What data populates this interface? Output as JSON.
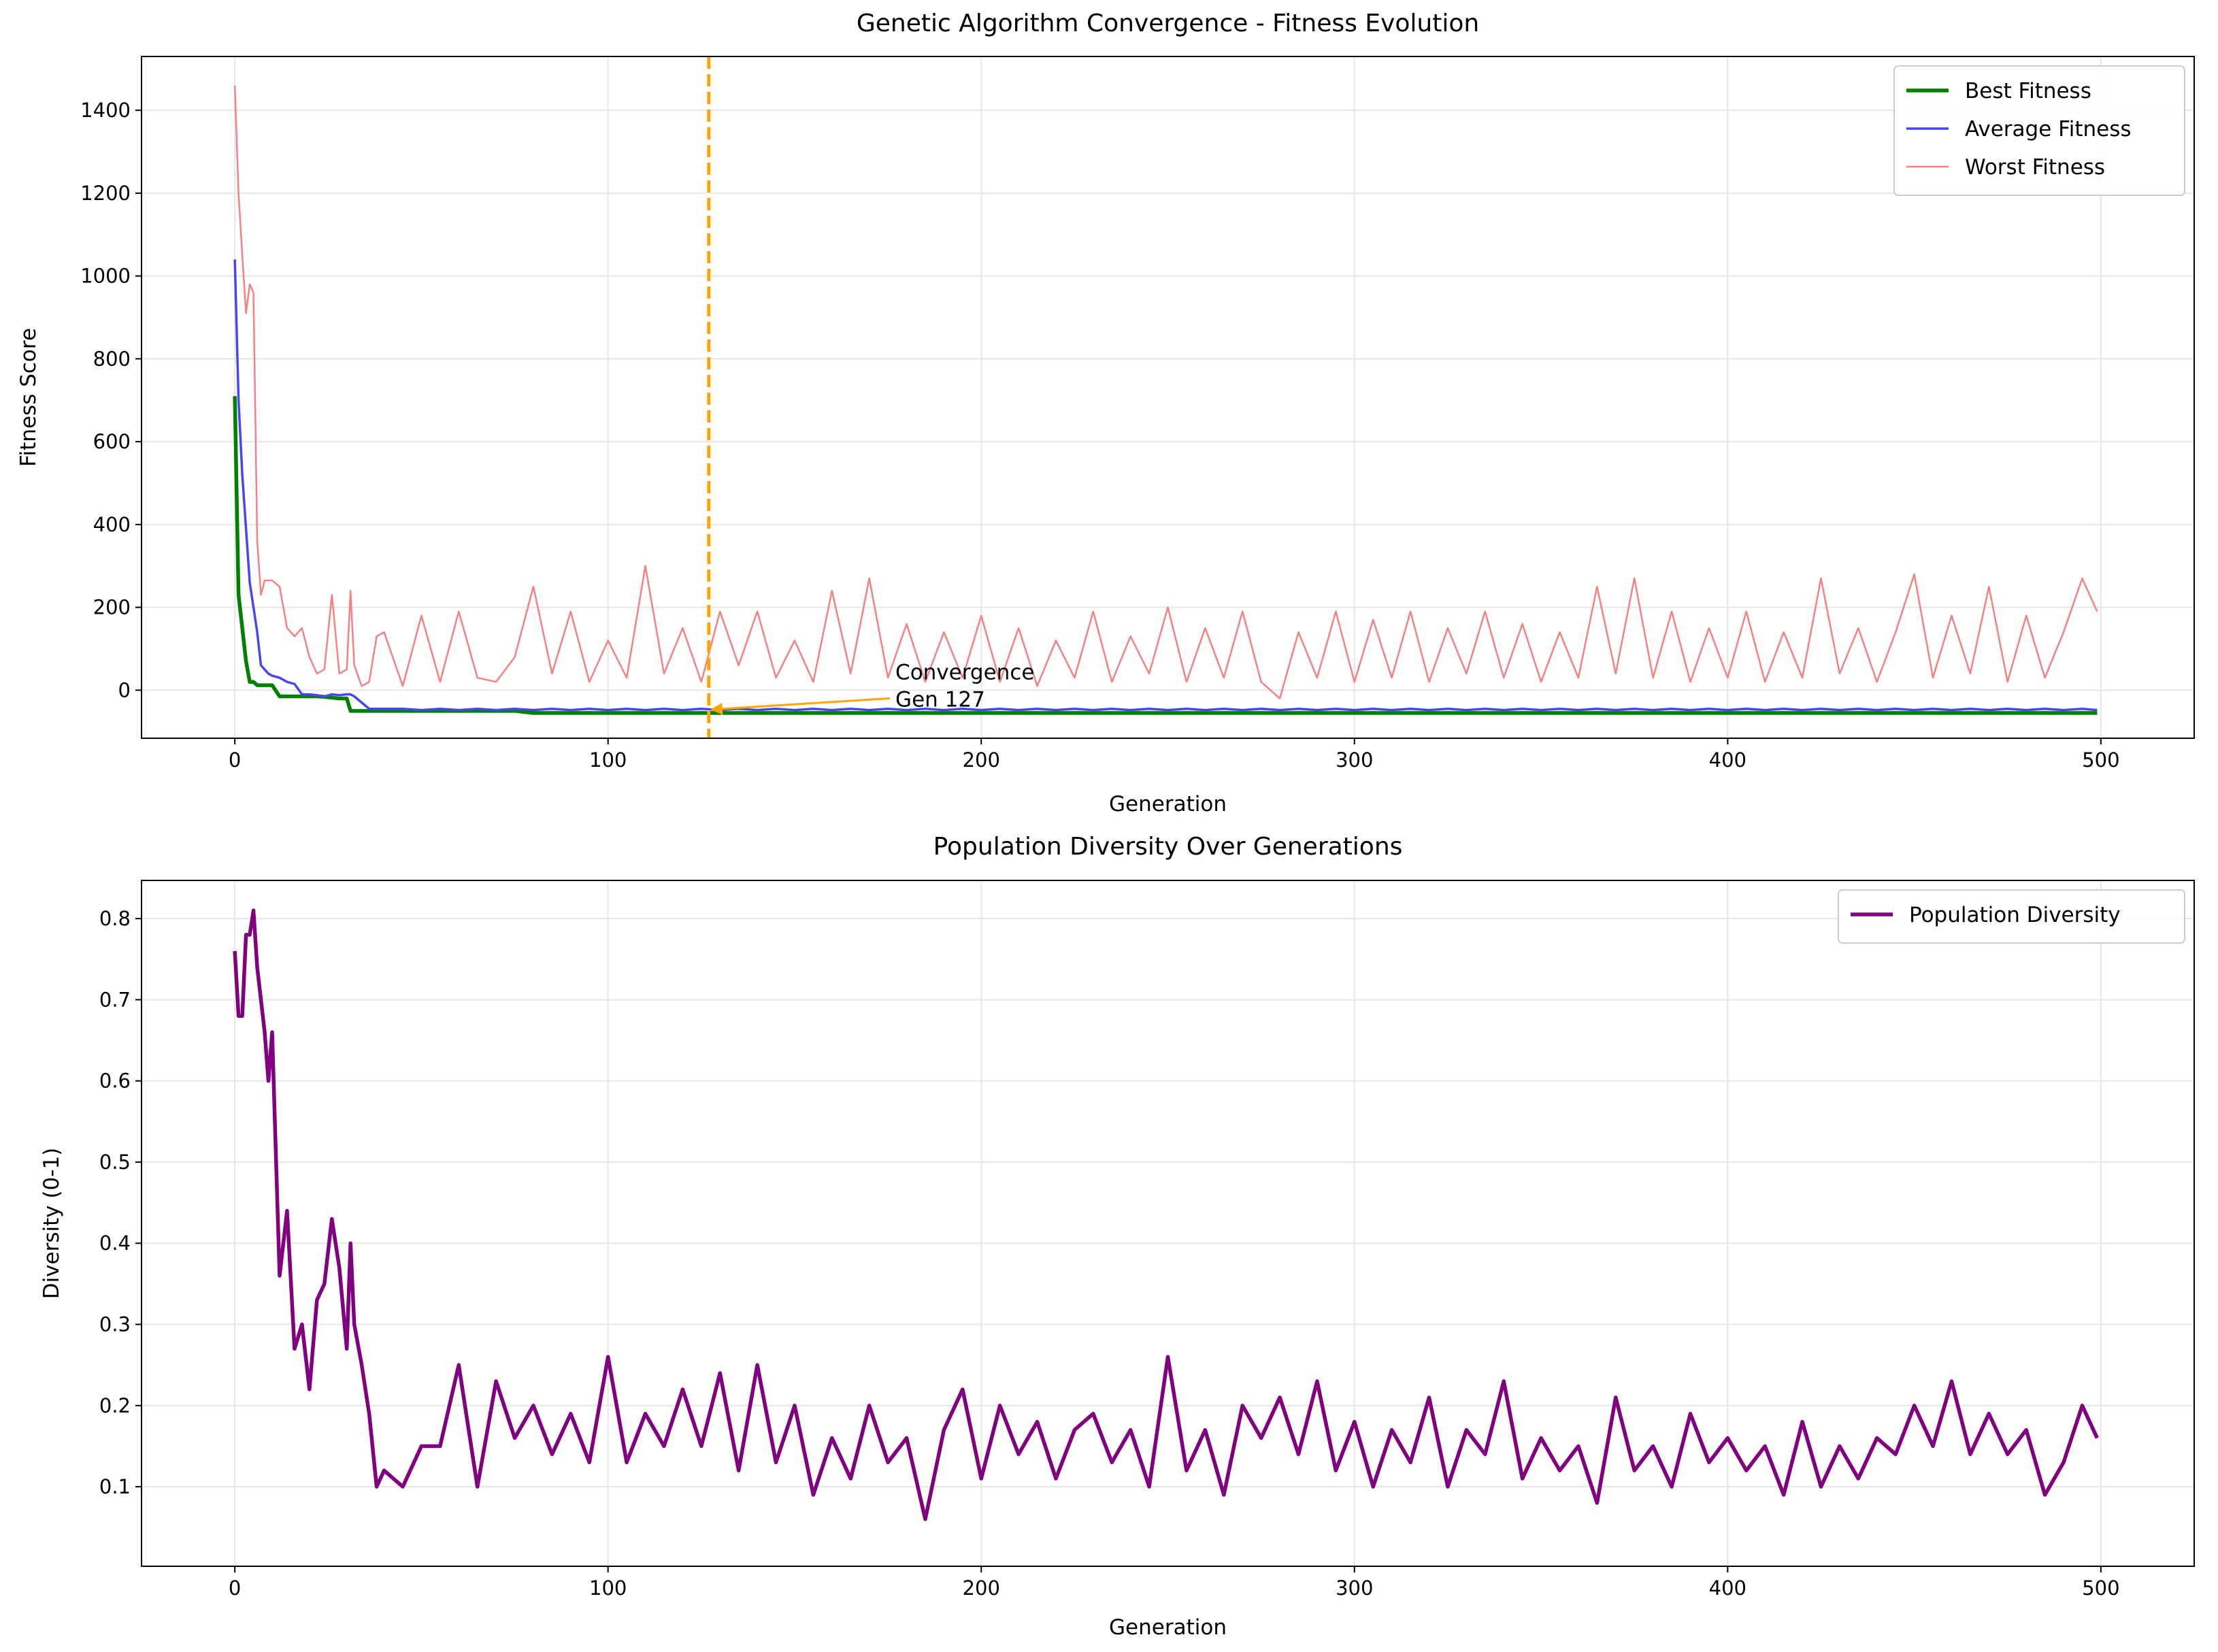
{
  "chart_data": [
    {
      "type": "line",
      "title": "Genetic Algorithm Convergence - Fitness Evolution",
      "xlabel": "Generation",
      "ylabel": "Fitness Score",
      "x": [
        0,
        1,
        2,
        3,
        4,
        5,
        6,
        7,
        8,
        9,
        10,
        12,
        14,
        16,
        18,
        20,
        22,
        24,
        26,
        28,
        30,
        31,
        32,
        34,
        36,
        38,
        40,
        45,
        50,
        55,
        60,
        65,
        70,
        75,
        80,
        85,
        90,
        95,
        100,
        105,
        110,
        115,
        120,
        125,
        130,
        135,
        140,
        145,
        150,
        155,
        160,
        165,
        170,
        175,
        180,
        185,
        190,
        195,
        200,
        205,
        210,
        215,
        220,
        225,
        230,
        235,
        240,
        245,
        250,
        255,
        260,
        265,
        270,
        275,
        280,
        285,
        290,
        295,
        300,
        305,
        310,
        315,
        320,
        325,
        330,
        335,
        340,
        345,
        350,
        355,
        360,
        365,
        370,
        375,
        380,
        385,
        390,
        395,
        400,
        405,
        410,
        415,
        420,
        425,
        430,
        435,
        440,
        445,
        450,
        455,
        460,
        465,
        470,
        475,
        480,
        485,
        490,
        495,
        499
      ],
      "series": [
        {
          "name": "Best Fitness",
          "color": "#008000",
          "values": [
            710,
            230,
            150,
            70,
            20,
            20,
            12,
            12,
            12,
            12,
            12,
            -15,
            -15,
            -15,
            -15,
            -15,
            -15,
            -16,
            -18,
            -20,
            -20,
            -50,
            -50,
            -50,
            -50,
            -50,
            -50,
            -50,
            -50,
            -50,
            -50,
            -50,
            -50,
            -50,
            -55,
            -55,
            -55,
            -55,
            -55,
            -55,
            -55,
            -55,
            -55,
            -55,
            -55,
            -55,
            -55,
            -55,
            -55,
            -55,
            -55,
            -55,
            -55,
            -55,
            -55,
            -55,
            -55,
            -55,
            -55,
            -55,
            -55,
            -55,
            -55,
            -55,
            -55,
            -55,
            -55,
            -55,
            -55,
            -55,
            -55,
            -55,
            -55,
            -55,
            -55,
            -55,
            -55,
            -55,
            -55,
            -55,
            -55,
            -55,
            -55,
            -55,
            -55,
            -55,
            -55,
            -55,
            -55,
            -55,
            -55,
            -55,
            -55,
            -55,
            -55,
            -55,
            -55,
            -55,
            -55,
            -55,
            -55,
            -55,
            -55,
            -55,
            -55,
            -55,
            -55,
            -55,
            -55,
            -55,
            -55,
            -55,
            -55,
            -55,
            -55,
            -55,
            -55,
            -55,
            -55
          ]
        },
        {
          "name": "Average Fitness",
          "color": "#4646f5",
          "values": [
            1040,
            700,
            520,
            390,
            260,
            200,
            140,
            60,
            50,
            40,
            35,
            30,
            20,
            15,
            -10,
            -10,
            -12,
            -15,
            -10,
            -12,
            -10,
            -10,
            -15,
            -30,
            -45,
            -45,
            -45,
            -45,
            -48,
            -45,
            -48,
            -45,
            -48,
            -45,
            -48,
            -45,
            -48,
            -45,
            -48,
            -45,
            -48,
            -45,
            -48,
            -45,
            -48,
            -45,
            -48,
            -45,
            -48,
            -45,
            -48,
            -45,
            -48,
            -45,
            -48,
            -45,
            -48,
            -45,
            -48,
            -45,
            -48,
            -45,
            -48,
            -45,
            -48,
            -45,
            -48,
            -45,
            -48,
            -45,
            -48,
            -45,
            -48,
            -45,
            -48,
            -45,
            -48,
            -45,
            -48,
            -45,
            -48,
            -45,
            -48,
            -45,
            -48,
            -45,
            -48,
            -45,
            -48,
            -45,
            -48,
            -45,
            -48,
            -45,
            -48,
            -45,
            -48,
            -45,
            -48,
            -45,
            -48,
            -45,
            -48,
            -45,
            -48,
            -45,
            -48,
            -45,
            -48,
            -45,
            -48,
            -45,
            -48,
            -45,
            -48,
            -45,
            -48,
            -45,
            -48
          ]
        },
        {
          "name": "Worst Fitness",
          "color": "#f58282",
          "values": [
            1460,
            1200,
            1050,
            910,
            980,
            960,
            360,
            230,
            265,
            265,
            265,
            250,
            150,
            130,
            150,
            80,
            40,
            50,
            230,
            40,
            50,
            240,
            60,
            10,
            20,
            130,
            140,
            10,
            180,
            20,
            190,
            30,
            20,
            80,
            250,
            40,
            190,
            20,
            120,
            30,
            300,
            40,
            150,
            20,
            190,
            60,
            190,
            30,
            120,
            20,
            240,
            40,
            270,
            30,
            160,
            20,
            140,
            30,
            180,
            20,
            150,
            10,
            120,
            30,
            190,
            20,
            130,
            40,
            200,
            20,
            150,
            30,
            190,
            20,
            -20,
            140,
            30,
            190,
            20,
            170,
            30,
            190,
            20,
            150,
            40,
            190,
            30,
            160,
            20,
            140,
            30,
            250,
            40,
            270,
            30,
            190,
            20,
            150,
            30,
            190,
            20,
            140,
            30,
            270,
            40,
            150,
            20,
            140,
            280,
            30,
            180,
            40,
            250,
            20,
            180,
            30,
            140,
            270,
            190
          ]
        }
      ],
      "xlim": [
        -25,
        525
      ],
      "ylim": [
        -116,
        1530
      ],
      "xticks": [
        0,
        100,
        200,
        300,
        400,
        500
      ],
      "yticks": [
        0,
        200,
        400,
        600,
        800,
        1000,
        1200,
        1400
      ],
      "grid": true,
      "legend": "upper right",
      "vline": {
        "x": 127,
        "color": "#ffa500"
      },
      "annotation": {
        "lines": [
          "Convergence",
          "Gen 127"
        ],
        "xy": [
          127,
          -50
        ],
        "xytext": [
          177,
          0
        ],
        "color": "#ffa500"
      }
    },
    {
      "type": "line",
      "title": "Population Diversity Over Generations",
      "xlabel": "Generation",
      "ylabel": "Diversity (0-1)",
      "x": [
        0,
        1,
        2,
        3,
        4,
        5,
        6,
        7,
        8,
        9,
        10,
        12,
        14,
        16,
        18,
        20,
        22,
        24,
        26,
        28,
        30,
        31,
        32,
        34,
        36,
        38,
        40,
        45,
        50,
        55,
        60,
        65,
        70,
        75,
        80,
        85,
        90,
        95,
        100,
        105,
        110,
        115,
        120,
        125,
        130,
        135,
        140,
        145,
        150,
        155,
        160,
        165,
        170,
        175,
        180,
        185,
        190,
        195,
        200,
        205,
        210,
        215,
        220,
        225,
        230,
        235,
        240,
        245,
        250,
        255,
        260,
        265,
        270,
        275,
        280,
        285,
        290,
        295,
        300,
        305,
        310,
        315,
        320,
        325,
        330,
        335,
        340,
        345,
        350,
        355,
        360,
        365,
        370,
        375,
        380,
        385,
        390,
        395,
        400,
        405,
        410,
        415,
        420,
        425,
        430,
        435,
        440,
        445,
        450,
        455,
        460,
        465,
        470,
        475,
        480,
        485,
        490,
        495,
        499
      ],
      "series": [
        {
          "name": "Population Diversity",
          "color": "#800080",
          "values": [
            0.76,
            0.68,
            0.68,
            0.78,
            0.78,
            0.81,
            0.74,
            0.7,
            0.66,
            0.6,
            0.66,
            0.36,
            0.44,
            0.27,
            0.3,
            0.22,
            0.33,
            0.35,
            0.43,
            0.37,
            0.27,
            0.4,
            0.3,
            0.25,
            0.19,
            0.1,
            0.12,
            0.1,
            0.15,
            0.15,
            0.25,
            0.1,
            0.23,
            0.16,
            0.2,
            0.14,
            0.19,
            0.13,
            0.26,
            0.13,
            0.19,
            0.15,
            0.22,
            0.15,
            0.24,
            0.12,
            0.25,
            0.13,
            0.2,
            0.09,
            0.16,
            0.11,
            0.2,
            0.13,
            0.16,
            0.06,
            0.17,
            0.22,
            0.11,
            0.2,
            0.14,
            0.18,
            0.11,
            0.17,
            0.19,
            0.13,
            0.17,
            0.1,
            0.26,
            0.12,
            0.17,
            0.09,
            0.2,
            0.16,
            0.21,
            0.14,
            0.23,
            0.12,
            0.18,
            0.1,
            0.17,
            0.13,
            0.21,
            0.1,
            0.17,
            0.14,
            0.23,
            0.11,
            0.16,
            0.12,
            0.15,
            0.08,
            0.21,
            0.12,
            0.15,
            0.1,
            0.19,
            0.13,
            0.16,
            0.12,
            0.15,
            0.09,
            0.18,
            0.1,
            0.15,
            0.11,
            0.16,
            0.14,
            0.2,
            0.15,
            0.23,
            0.14,
            0.19,
            0.14,
            0.17,
            0.09,
            0.13,
            0.2,
            0.16
          ]
        }
      ],
      "xlim": [
        -25,
        525
      ],
      "ylim": [
        0.002,
        0.847
      ],
      "xticks": [
        0,
        100,
        200,
        300,
        400,
        500
      ],
      "yticks": [
        0.1,
        0.2,
        0.3,
        0.4,
        0.5,
        0.6,
        0.7,
        0.8
      ],
      "grid": true,
      "legend": "upper right"
    }
  ]
}
